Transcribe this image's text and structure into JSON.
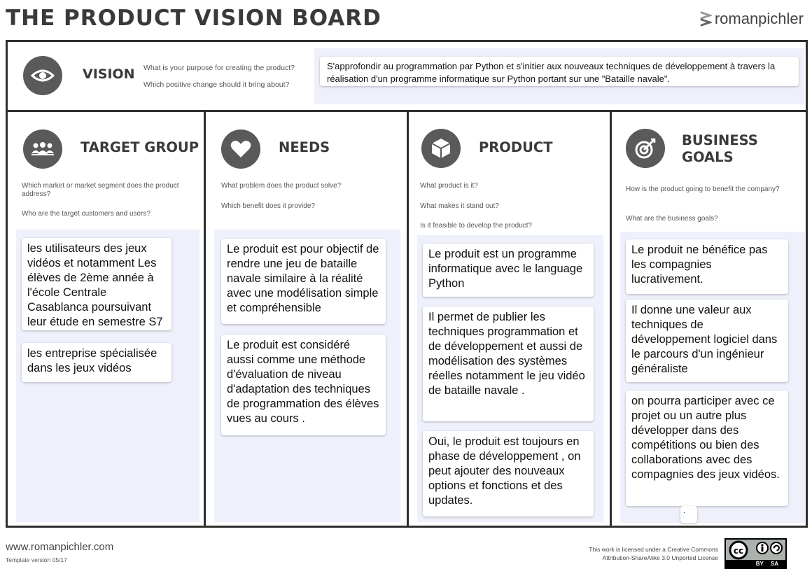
{
  "header": {
    "title": "THE PRODUCT VISION BOARD",
    "brand": "romanpichler"
  },
  "vision": {
    "title": "VISION",
    "questions": [
      "What is your purpose for creating the product?",
      "Which positive change should it bring about?"
    ],
    "note": "S'approfondir au programmation par Python et s'initier aux nouveaux techniques de développement  à travers la réalisation d'un programme informatique sur Python portant sur une \"Bataille navale\"."
  },
  "columns": [
    {
      "title": "TARGET  GROUP",
      "icon": "group-icon",
      "questions": [
        "Which market or market segment does the product address?",
        "Who are the target customers and users?"
      ],
      "notes": [
        "les utilisateurs des jeux vidéos et notamment Les élèves de 2ème année à l'école Centrale Casablanca poursuivant leur étude en semestre S7",
        "les entreprise spécialisée dans les jeux vidéos"
      ]
    },
    {
      "title": "NEEDS",
      "icon": "heart-icon",
      "questions": [
        "What problem does the product solve?",
        "Which benefit does it provide?"
      ],
      "notes": [
        "Le produit est pour objectif de rendre une jeu de bataille navale similaire à la réalité avec une modélisation simple et compréhensible",
        "Le produit est considéré aussi comme une méthode d'évaluation de  niveau d'adaptation des techniques de programmation des élèves vues au cours ."
      ]
    },
    {
      "title": "PRODUCT",
      "icon": "cube-icon",
      "questions": [
        "What product is it?",
        "What makes it stand out?",
        "Is it feasible to develop the product?"
      ],
      "notes": [
        "Le produit est un programme informatique avec le language Python",
        "Il permet de publier les techniques programmation et de développement et aussi  de modélisation des systèmes  réelles notamment le jeu vidéo de bataille navale .",
        "Oui, le produit est toujours en phase de développement , on peut ajouter des nouveaux options et fonctions et des updates."
      ]
    },
    {
      "title": "BUSINESS GOALS",
      "icon": "target-icon",
      "questions": [
        "How is the product going to benefit the company?",
        "What are the business goals?"
      ],
      "notes": [
        "Le produit ne bénéfice pas les compagnies lucrativement.",
        "Il donne une valeur aux techniques de développement logiciel dans le parcours d'un ingénieur généraliste",
        "on pourra participer avec ce projet ou un autre plus développer dans des compétitions ou bien des collaborations avec des compagnies des jeux vidéos.",
        "."
      ]
    }
  ],
  "footer": {
    "url": "www.romanpichler.com",
    "version": "Template version 05/17",
    "license_line1": "This work is licensed under a Creative Commons",
    "license_line2": "Attribution-ShareAlike 3.0 Unported License",
    "cc_label": "cc",
    "by_label": "BY",
    "sa_label": "SA"
  },
  "colors": {
    "border": "#2f2f2f",
    "icon_bg": "#5a5a5a",
    "area_bg": "#eef0fb",
    "badge_bg": "#aab2ab"
  }
}
